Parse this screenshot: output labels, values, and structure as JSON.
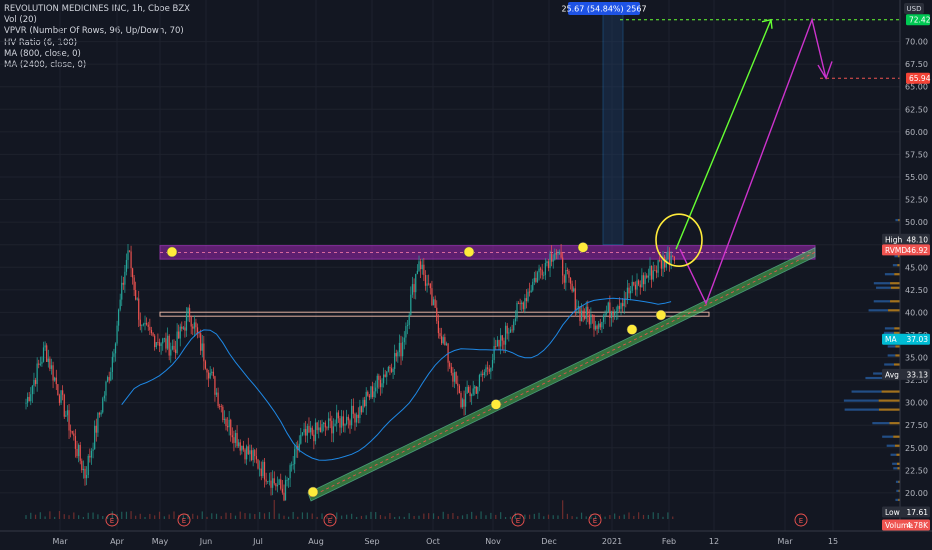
{
  "header": {
    "title": "REVOLUTION MEDICINES INC, 1h, Cboe BZX",
    "indicators": [
      "Vol (20)",
      "VPVR (Number Of Rows, 96, Up/Down, 70)",
      "HV Ratio (6, 100)",
      "MA (800, close, 0)",
      "MA (2400, close, 0)"
    ]
  },
  "measure_label": "25.67 (54.84%) 2567",
  "currency": "USD",
  "colors": {
    "background": "#131722",
    "up": "#26a69a",
    "down": "#ef5350",
    "green_arrow": "#66ff33",
    "magenta_arrow": "#cc33cc",
    "resistance_band": "#9c27b0",
    "trend_channel": "#4caf50",
    "support_line": "#e0b0a0",
    "ma_line": "#1e88e5",
    "marker": "#ffeb3b"
  },
  "price_labels": [
    {
      "id": "target",
      "text": "72.42",
      "color": "#00c853"
    },
    {
      "id": "mid-target",
      "text": "65.94",
      "color": "#f44336"
    },
    {
      "id": "high",
      "text": "High",
      "value": "48.10",
      "color": "#2a2e39"
    },
    {
      "id": "last",
      "text": "RVMD",
      "value": "46.92",
      "color": "#ef5350"
    },
    {
      "id": "ma",
      "text": "MA",
      "value": "37.03",
      "color": "#00bcd4"
    },
    {
      "id": "avg",
      "text": "Avg",
      "value": "33.13",
      "color": "#2a2e39"
    },
    {
      "id": "low",
      "text": "Low",
      "value": "17.61",
      "color": "#2a2e39"
    },
    {
      "id": "volume",
      "text": "Volume",
      "value": "4.78K",
      "color": "#ef5350"
    }
  ],
  "earnings_marker": "E",
  "chart_data": {
    "type": "candlestick",
    "title": "REVOLUTION MEDICINES INC, 1h, Cboe BZX",
    "y_axis": {
      "ticks": [
        20.0,
        22.5,
        25.0,
        27.5,
        30.0,
        32.5,
        35.0,
        37.5,
        40.0,
        42.5,
        45.0,
        47.5,
        50.0,
        52.5,
        55.0,
        57.5,
        60.0,
        62.5,
        65.0,
        67.5,
        70.0
      ],
      "range": [
        17.0,
        73.5
      ],
      "position": "right"
    },
    "x_axis": {
      "ticks": [
        "Mar",
        "Apr",
        "May",
        "Jun",
        "Jul",
        "Aug",
        "Sep",
        "Oct",
        "Nov",
        "Dec",
        "2021",
        "Feb",
        "12",
        "Mar",
        "15"
      ]
    },
    "price_path_points": [
      [
        "Mar",
        30
      ],
      [
        "Mar",
        36
      ],
      [
        "Apr",
        22
      ],
      [
        "Apr",
        28
      ],
      [
        "Apr",
        34
      ],
      [
        "May",
        47
      ],
      [
        "May",
        38
      ],
      [
        "Jun",
        36
      ],
      [
        "Jun",
        40
      ],
      [
        "Jul",
        28
      ],
      [
        "Jul",
        25
      ],
      [
        "Aug",
        20
      ],
      [
        "Aug",
        26
      ],
      [
        "Sep",
        28
      ],
      [
        "Sep",
        29
      ],
      [
        "Oct",
        36
      ],
      [
        "Oct",
        46
      ],
      [
        "Nov",
        30
      ],
      [
        "Nov",
        32
      ],
      [
        "Dec",
        40
      ],
      [
        "Dec",
        44
      ],
      [
        "Dec",
        47
      ],
      [
        "2021",
        40
      ],
      [
        "2021",
        39
      ],
      [
        "Feb",
        43
      ],
      [
        "Feb",
        47
      ]
    ],
    "resistance_zone": [
      45.9,
      47.4
    ],
    "support_level": 39.8,
    "trend_channel": {
      "from": [
        "Aug",
        20.0
      ],
      "to": [
        "15",
        46.5
      ]
    },
    "projection_green": {
      "from": [
        "Feb",
        47.0
      ],
      "to": [
        "Mar",
        72.42
      ]
    },
    "projection_magenta": [
      [
        "Feb",
        47.0
      ],
      [
        "12",
        41.0
      ],
      [
        "Mar",
        72.42
      ],
      [
        "15",
        65.94
      ]
    ],
    "markers": [
      "May",
      "Oct",
      "Dec",
      "Aug",
      "Nov",
      "2021",
      "Feb"
    ],
    "stats": {
      "high": 48.1,
      "last": 46.92,
      "ma": 37.03,
      "avg": 33.13,
      "low": 17.61,
      "volume": "4.78K",
      "target": 72.42,
      "mid_target": 65.94
    },
    "measure": {
      "change": 25.67,
      "percent": 54.84,
      "bars": 2567
    }
  }
}
